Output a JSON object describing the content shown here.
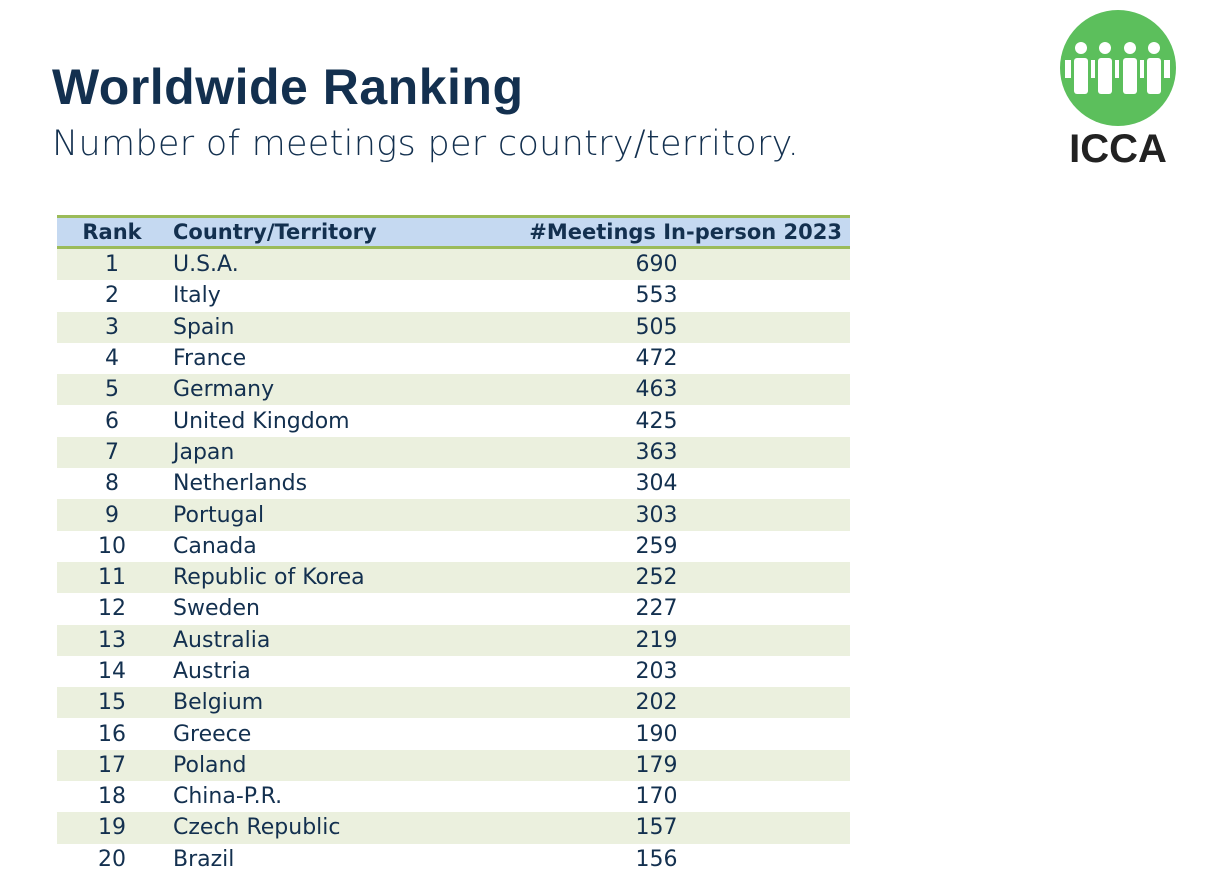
{
  "header": {
    "title": "Worldwide Ranking",
    "subtitle": "Number of meetings per country/territory."
  },
  "logo": {
    "text": "ICCA",
    "color": "#5cbf5c"
  },
  "table": {
    "columns": [
      "Rank",
      "Country/Territory",
      "#Meetings In-person 2023"
    ],
    "rows": [
      [
        "1",
        "U.S.A.",
        "690"
      ],
      [
        "2",
        "Italy",
        "553"
      ],
      [
        "3",
        "Spain",
        "505"
      ],
      [
        "4",
        "France",
        "472"
      ],
      [
        "5",
        "Germany",
        "463"
      ],
      [
        "6",
        "United Kingdom",
        "425"
      ],
      [
        "7",
        "Japan",
        "363"
      ],
      [
        "8",
        "Netherlands",
        "304"
      ],
      [
        "9",
        "Portugal",
        "303"
      ],
      [
        "10",
        "Canada",
        "259"
      ],
      [
        "11",
        "Republic of Korea",
        "252"
      ],
      [
        "12",
        "Sweden",
        "227"
      ],
      [
        "13",
        "Australia",
        "219"
      ],
      [
        "14",
        "Austria",
        "203"
      ],
      [
        "15",
        "Belgium",
        "202"
      ],
      [
        "16",
        "Greece",
        "190"
      ],
      [
        "17",
        "Poland",
        "179"
      ],
      [
        "18",
        "China-P.R.",
        "170"
      ],
      [
        "19",
        "Czech Republic",
        "157"
      ],
      [
        "20",
        "Brazil",
        "156"
      ]
    ]
  }
}
